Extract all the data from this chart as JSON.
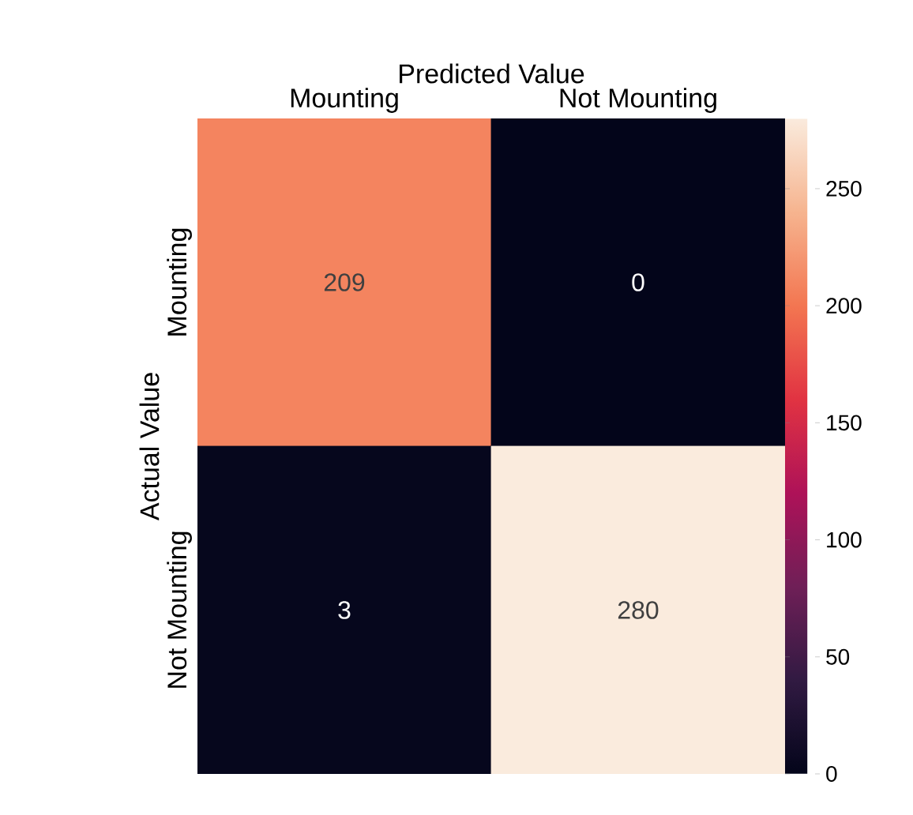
{
  "chart_data": {
    "type": "heatmap",
    "xlabel": "Predicted Value",
    "ylabel": "Actual Value",
    "categories": [
      "Mounting",
      "Not Mounting"
    ],
    "y_categories": [
      "Mounting",
      "Not Mounting"
    ],
    "cells": [
      [
        209,
        0
      ],
      [
        3,
        280
      ]
    ],
    "clim": [
      0,
      280
    ],
    "cticks": [
      0,
      50,
      100,
      150,
      200,
      250
    ],
    "data_labels": true
  }
}
